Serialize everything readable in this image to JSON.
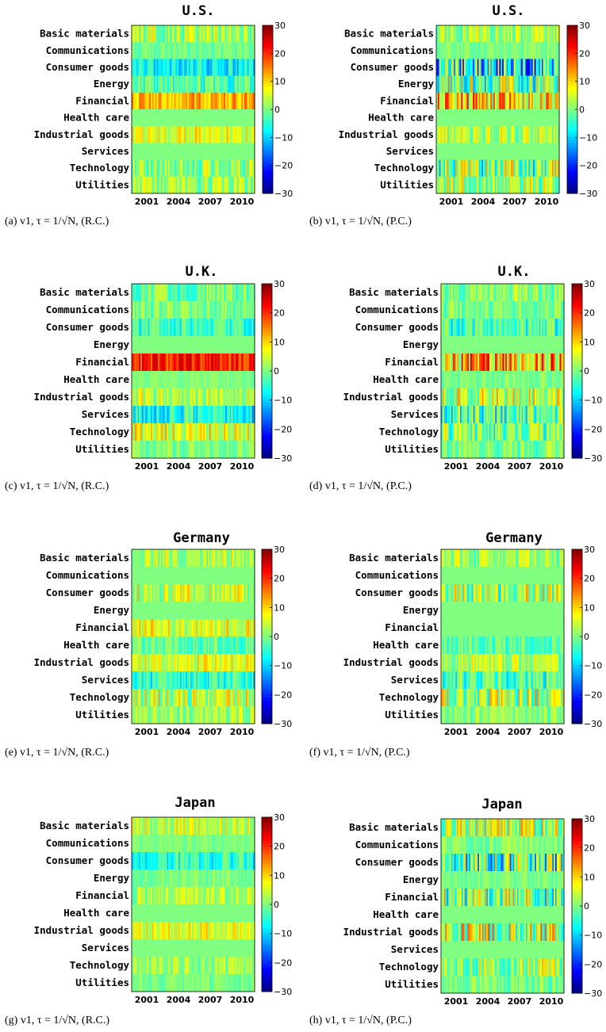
{
  "figure": {
    "colormap": "jet",
    "colorbar": {
      "range": [
        -30,
        30
      ],
      "ticks": [
        "30",
        "20",
        "10",
        "0",
        "−10",
        "−20",
        "−30"
      ]
    },
    "x_tick_labels": [
      "2001",
      "2004",
      "2007",
      "2010"
    ],
    "sectors": [
      "Basic materials",
      "Communications",
      "Consumer goods",
      "Energy",
      "Financial",
      "Health care",
      "Industrial goods",
      "Services",
      "Technology",
      "Utilities"
    ]
  },
  "chart_data": [
    {
      "type": "heatmap",
      "title": "U.S.",
      "caption": "(a) v1, τ = 1/√N, (R.C.)",
      "rows": [
        {
          "sector": "Basic materials",
          "mean": 2,
          "spread": 8
        },
        {
          "sector": "Communications",
          "mean": -1,
          "spread": 3
        },
        {
          "sector": "Consumer goods",
          "mean": -8,
          "spread": 6
        },
        {
          "sector": "Energy",
          "mean": -3,
          "spread": 7
        },
        {
          "sector": "Financial",
          "mean": 12,
          "spread": 6
        },
        {
          "sector": "Health care",
          "mean": 0,
          "spread": 0
        },
        {
          "sector": "Industrial goods",
          "mean": 6,
          "spread": 6
        },
        {
          "sector": "Services",
          "mean": 0,
          "spread": 0
        },
        {
          "sector": "Technology",
          "mean": 2,
          "spread": 8
        },
        {
          "sector": "Utilities",
          "mean": 2,
          "spread": 7
        }
      ]
    },
    {
      "type": "heatmap",
      "title": "U.S.",
      "caption": "(b) v1, τ = 1/√N, (P.C.)",
      "rows": [
        {
          "sector": "Basic materials",
          "mean": 2,
          "spread": 7
        },
        {
          "sector": "Communications",
          "mean": 0,
          "spread": 3
        },
        {
          "sector": "Consumer goods",
          "mean": -8,
          "spread": 18
        },
        {
          "sector": "Energy",
          "mean": 0,
          "spread": 14
        },
        {
          "sector": "Financial",
          "mean": 10,
          "spread": 14
        },
        {
          "sector": "Health care",
          "mean": 0,
          "spread": 0
        },
        {
          "sector": "Industrial goods",
          "mean": 3,
          "spread": 8
        },
        {
          "sector": "Services",
          "mean": 0,
          "spread": 0
        },
        {
          "sector": "Technology",
          "mean": 0,
          "spread": 14
        },
        {
          "sector": "Utilities",
          "mean": 2,
          "spread": 10
        }
      ]
    },
    {
      "type": "heatmap",
      "title": "U.K.",
      "caption": "(c) v1, τ = 1/√N, (R.C.)",
      "rows": [
        {
          "sector": "Basic materials",
          "mean": 0,
          "spread": 7
        },
        {
          "sector": "Communications",
          "mean": 0,
          "spread": 5
        },
        {
          "sector": "Consumer goods",
          "mean": -4,
          "spread": 6
        },
        {
          "sector": "Energy",
          "mean": 0,
          "spread": 0
        },
        {
          "sector": "Financial",
          "mean": 20,
          "spread": 6
        },
        {
          "sector": "Health care",
          "mean": 0,
          "spread": 2
        },
        {
          "sector": "Industrial goods",
          "mean": 3,
          "spread": 7
        },
        {
          "sector": "Services",
          "mean": -6,
          "spread": 8
        },
        {
          "sector": "Technology",
          "mean": 6,
          "spread": 8
        },
        {
          "sector": "Utilities",
          "mean": 0,
          "spread": 4
        }
      ]
    },
    {
      "type": "heatmap",
      "title": "U.K.",
      "caption": "(d) v1, τ = 1/√N, (P.C.)",
      "rows": [
        {
          "sector": "Basic materials",
          "mean": 0,
          "spread": 7
        },
        {
          "sector": "Communications",
          "mean": 0,
          "spread": 5
        },
        {
          "sector": "Consumer goods",
          "mean": -3,
          "spread": 8
        },
        {
          "sector": "Energy",
          "mean": 0,
          "spread": 0
        },
        {
          "sector": "Financial",
          "mean": 12,
          "spread": 14
        },
        {
          "sector": "Health care",
          "mean": 0,
          "spread": 3
        },
        {
          "sector": "Industrial goods",
          "mean": 4,
          "spread": 10
        },
        {
          "sector": "Services",
          "mean": -3,
          "spread": 12
        },
        {
          "sector": "Technology",
          "mean": 0,
          "spread": 10
        },
        {
          "sector": "Utilities",
          "mean": 0,
          "spread": 6
        }
      ]
    },
    {
      "type": "heatmap",
      "title": "Germany",
      "caption": "(e) v1, τ = 1/√N, (R.C.)",
      "rows": [
        {
          "sector": "Basic materials",
          "mean": 3,
          "spread": 7
        },
        {
          "sector": "Communications",
          "mean": 0,
          "spread": 0
        },
        {
          "sector": "Consumer goods",
          "mean": 4,
          "spread": 8
        },
        {
          "sector": "Energy",
          "mean": 0,
          "spread": 0
        },
        {
          "sector": "Financial",
          "mean": 6,
          "spread": 7
        },
        {
          "sector": "Health care",
          "mean": -2,
          "spread": 6
        },
        {
          "sector": "Industrial goods",
          "mean": 6,
          "spread": 6
        },
        {
          "sector": "Services",
          "mean": -5,
          "spread": 7
        },
        {
          "sector": "Technology",
          "mean": 3,
          "spread": 10
        },
        {
          "sector": "Utilities",
          "mean": 2,
          "spread": 6
        }
      ]
    },
    {
      "type": "heatmap",
      "title": "Germany",
      "caption": "(f) v1, τ = 1/√N, (P.C.)",
      "rows": [
        {
          "sector": "Basic materials",
          "mean": 2,
          "spread": 7
        },
        {
          "sector": "Communications",
          "mean": 0,
          "spread": 0
        },
        {
          "sector": "Consumer goods",
          "mean": 2,
          "spread": 12
        },
        {
          "sector": "Energy",
          "mean": 0,
          "spread": 0
        },
        {
          "sector": "Financial",
          "mean": 0,
          "spread": 0
        },
        {
          "sector": "Health care",
          "mean": -2,
          "spread": 6
        },
        {
          "sector": "Industrial goods",
          "mean": 3,
          "spread": 7
        },
        {
          "sector": "Services",
          "mean": -3,
          "spread": 8
        },
        {
          "sector": "Technology",
          "mean": 2,
          "spread": 12
        },
        {
          "sector": "Utilities",
          "mean": 1,
          "spread": 5
        }
      ]
    },
    {
      "type": "heatmap",
      "title": "Japan",
      "caption": "(g) v1, τ = 1/√N, (R.C.)",
      "rows": [
        {
          "sector": "Basic materials",
          "mean": 4,
          "spread": 7
        },
        {
          "sector": "Communications",
          "mean": 0,
          "spread": 2
        },
        {
          "sector": "Consumer goods",
          "mean": -5,
          "spread": 6
        },
        {
          "sector": "Energy",
          "mean": 0,
          "spread": 3
        },
        {
          "sector": "Financial",
          "mean": 3,
          "spread": 6
        },
        {
          "sector": "Health care",
          "mean": 0,
          "spread": 0
        },
        {
          "sector": "Industrial goods",
          "mean": 6,
          "spread": 6
        },
        {
          "sector": "Services",
          "mean": 0,
          "spread": 0
        },
        {
          "sector": "Technology",
          "mean": 2,
          "spread": 6
        },
        {
          "sector": "Utilities",
          "mean": 0,
          "spread": 3
        }
      ]
    },
    {
      "type": "heatmap",
      "title": "Japan",
      "caption": "(h) v1, τ = 1/√N, (P.C.)",
      "rows": [
        {
          "sector": "Basic materials",
          "mean": 2,
          "spread": 12
        },
        {
          "sector": "Communications",
          "mean": 0,
          "spread": 4
        },
        {
          "sector": "Consumer goods",
          "mean": -4,
          "spread": 16
        },
        {
          "sector": "Energy",
          "mean": 0,
          "spread": 3
        },
        {
          "sector": "Financial",
          "mean": 0,
          "spread": 14
        },
        {
          "sector": "Health care",
          "mean": 0,
          "spread": 0
        },
        {
          "sector": "Industrial goods",
          "mean": 4,
          "spread": 14
        },
        {
          "sector": "Services",
          "mean": 0,
          "spread": 0
        },
        {
          "sector": "Technology",
          "mean": 2,
          "spread": 10
        },
        {
          "sector": "Utilities",
          "mean": 0,
          "spread": 5
        }
      ]
    }
  ]
}
